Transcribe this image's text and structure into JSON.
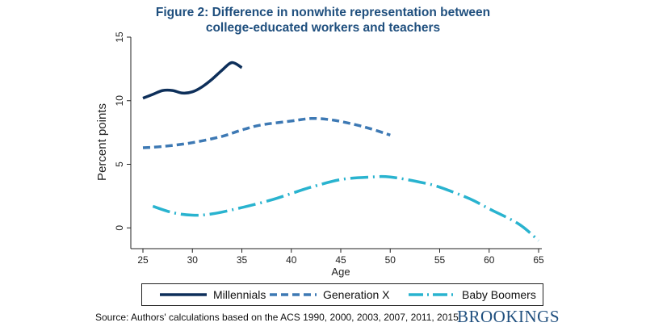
{
  "title_line1": "Figure 2: Difference in nonwhite representation between",
  "title_line2": "college-educated workers and teachers",
  "source": "Source: Authors' calculations based on the ACS 1990, 2000, 2003, 2007, 2011, 2015.",
  "brand": "BROOKINGS",
  "colors": {
    "title": "#1f4f7e",
    "millennials": "#0d2f5a",
    "genx": "#3d79b4",
    "boomers": "#29b3cf"
  },
  "chart_data": {
    "type": "line",
    "title": "Figure 2: Difference in nonwhite representation between college-educated workers and teachers",
    "xlabel": "Age",
    "ylabel": "Percent points",
    "xlim": [
      25,
      65
    ],
    "ylim": [
      -1,
      15
    ],
    "xticks": [
      25,
      30,
      35,
      40,
      45,
      50,
      55,
      60,
      65
    ],
    "yticks": [
      0,
      5,
      10,
      15
    ],
    "grid": false,
    "legend_position": "bottom",
    "series": [
      {
        "name": "Millennials",
        "style": "solid",
        "color": "#0d2f5a",
        "x": [
          25,
          26,
          27,
          28,
          29,
          30,
          31,
          32,
          33,
          34,
          35
        ],
        "y": [
          10.2,
          10.5,
          10.8,
          10.8,
          10.6,
          10.7,
          11.1,
          11.7,
          12.4,
          13.0,
          12.6
        ]
      },
      {
        "name": "Generation X",
        "style": "dash",
        "color": "#3d79b4",
        "x": [
          25,
          27,
          30,
          33,
          35,
          37,
          40,
          42,
          44,
          46,
          48,
          50
        ],
        "y": [
          6.3,
          6.4,
          6.7,
          7.2,
          7.7,
          8.1,
          8.4,
          8.6,
          8.5,
          8.2,
          7.8,
          7.3
        ]
      },
      {
        "name": "Baby Boomers",
        "style": "longdash-dot",
        "color": "#29b3cf",
        "x": [
          26,
          28,
          30,
          32,
          35,
          38,
          40,
          42,
          45,
          48,
          50,
          53,
          55,
          58,
          60,
          63,
          65
        ],
        "y": [
          1.7,
          1.2,
          1.0,
          1.1,
          1.6,
          2.2,
          2.7,
          3.2,
          3.8,
          4.0,
          4.0,
          3.6,
          3.2,
          2.3,
          1.5,
          0.3,
          -1.0
        ]
      }
    ]
  }
}
